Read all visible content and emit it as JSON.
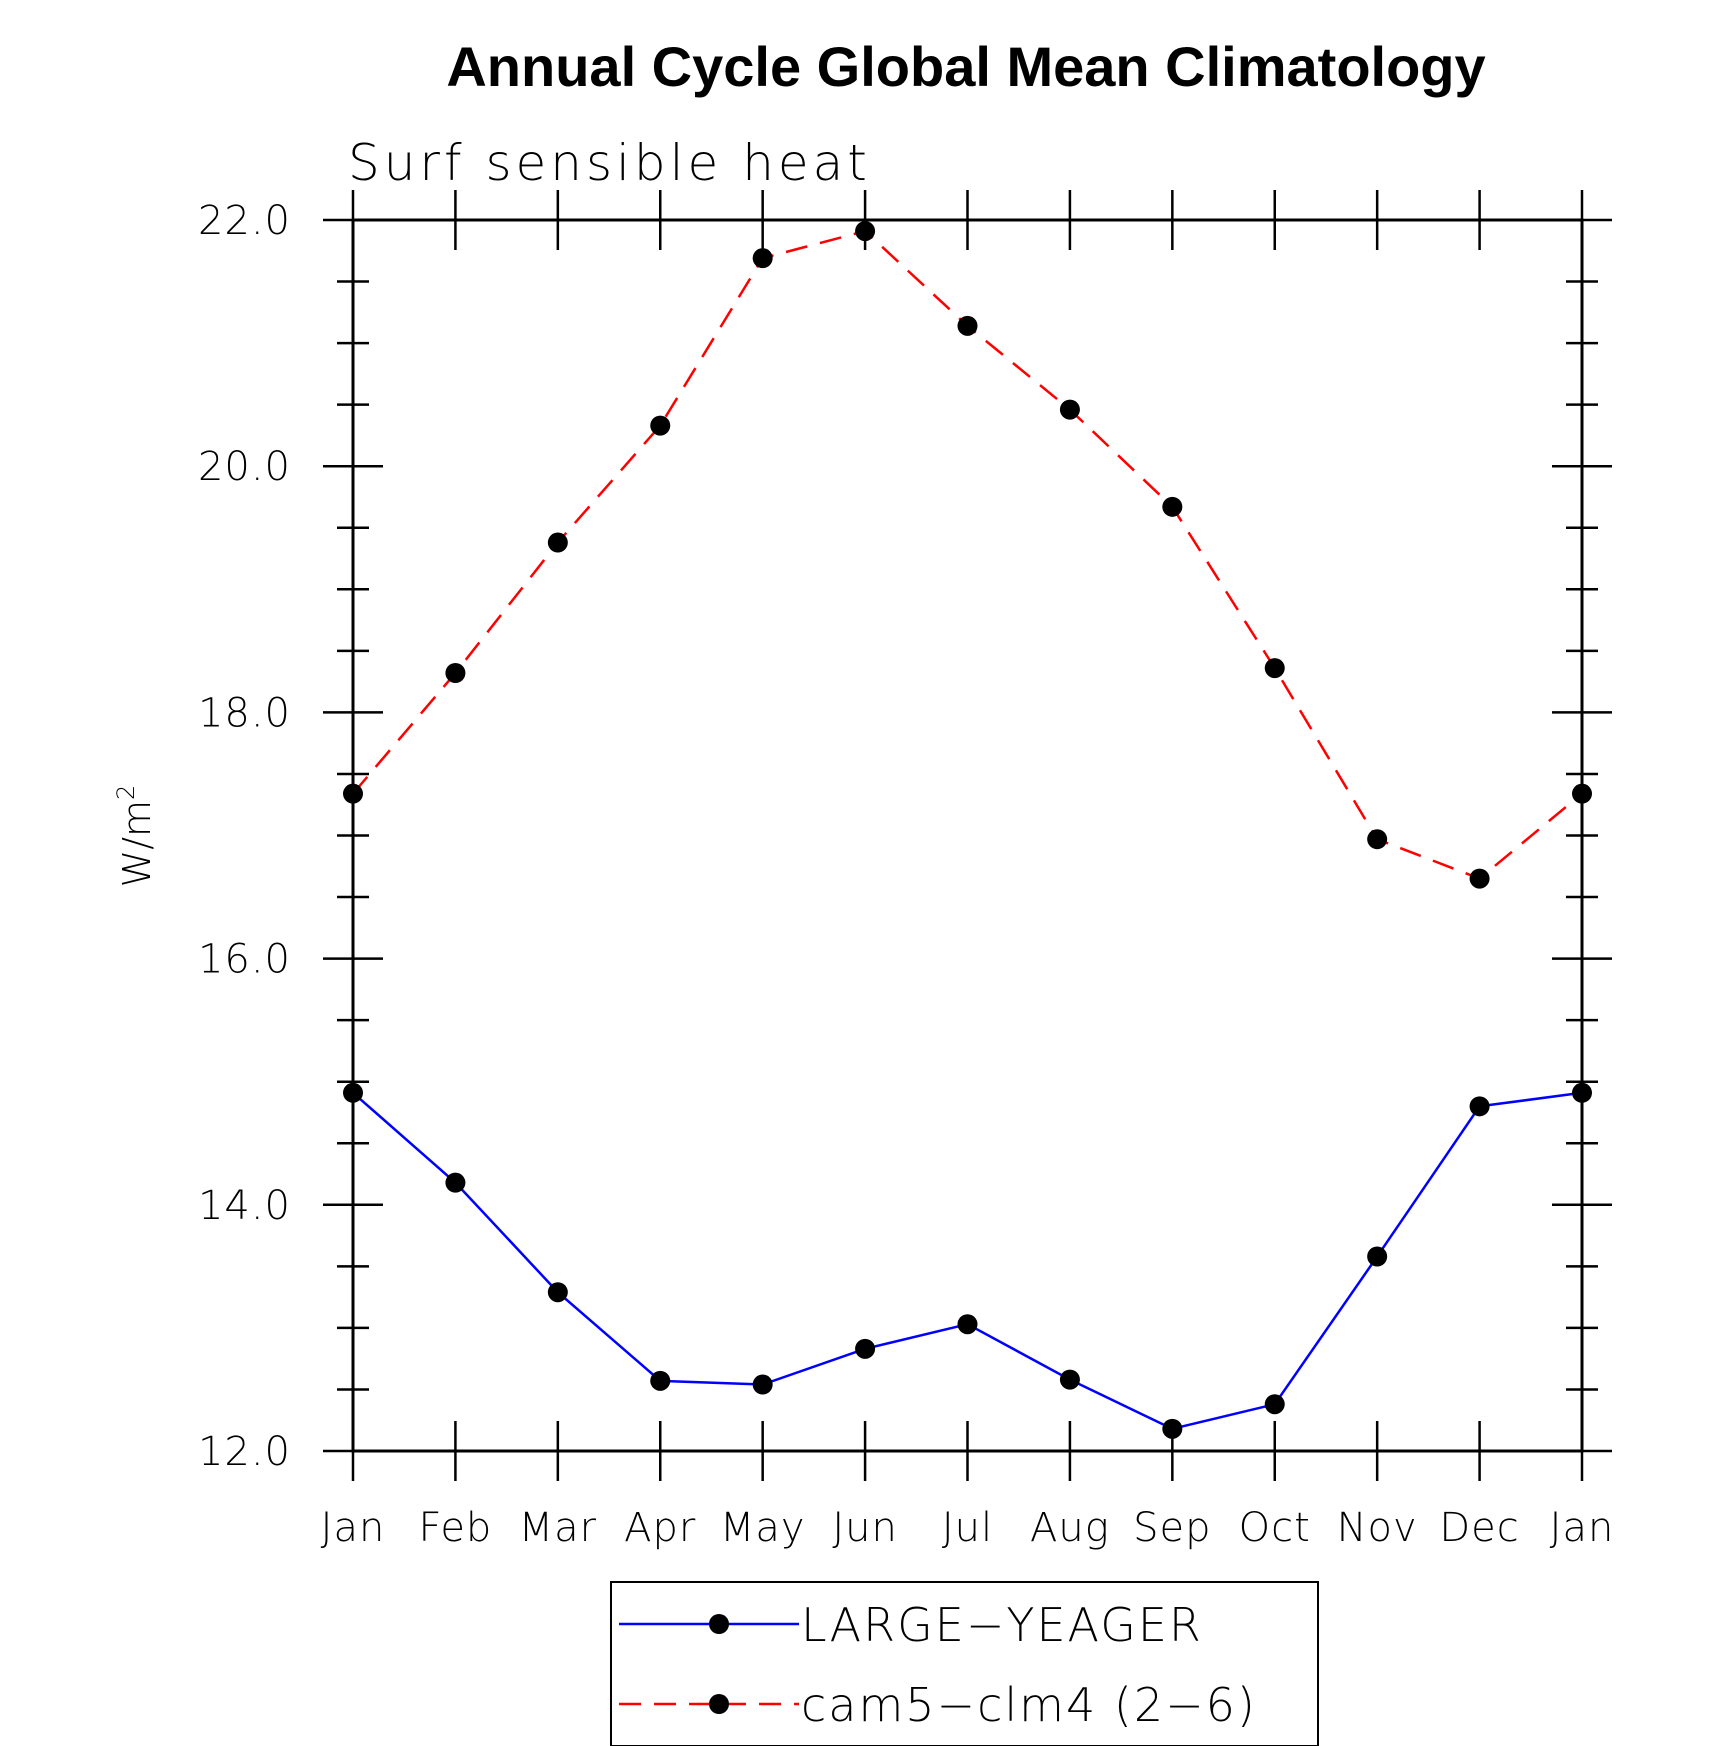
{
  "chart_data": {
    "type": "line",
    "title": "Annual Cycle Global Mean Climatology",
    "subtitle": "Surf  sensible  heat",
    "xlabel": "",
    "ylabel": "W/m",
    "ylabel_superscript": "2",
    "categories": [
      "Jan",
      "Feb",
      "Mar",
      "Apr",
      "May",
      "Jun",
      "Jul",
      "Aug",
      "Sep",
      "Oct",
      "Nov",
      "Dec",
      "Jan"
    ],
    "ylim": [
      12.0,
      22.0
    ],
    "yticks": [
      "12.0",
      "14.0",
      "16.0",
      "18.0",
      "20.0",
      "22.0"
    ],
    "grid": false,
    "legend_position": "bottom-center",
    "series": [
      {
        "name": "LARGE−YEAGER",
        "color": "#0000ff",
        "dash": "solid",
        "marker": "filled-circle",
        "values": [
          14.91,
          14.18,
          13.29,
          12.57,
          12.54,
          12.83,
          13.03,
          12.58,
          12.18,
          12.38,
          13.58,
          14.8,
          14.91
        ]
      },
      {
        "name": "cam5−clm4 (2−6)",
        "color": "#ff0000",
        "dash": "dashed",
        "marker": "filled-circle",
        "values": [
          17.34,
          18.32,
          19.38,
          20.33,
          21.69,
          21.91,
          21.14,
          20.46,
          19.67,
          18.36,
          16.97,
          16.65,
          17.34
        ]
      }
    ]
  }
}
